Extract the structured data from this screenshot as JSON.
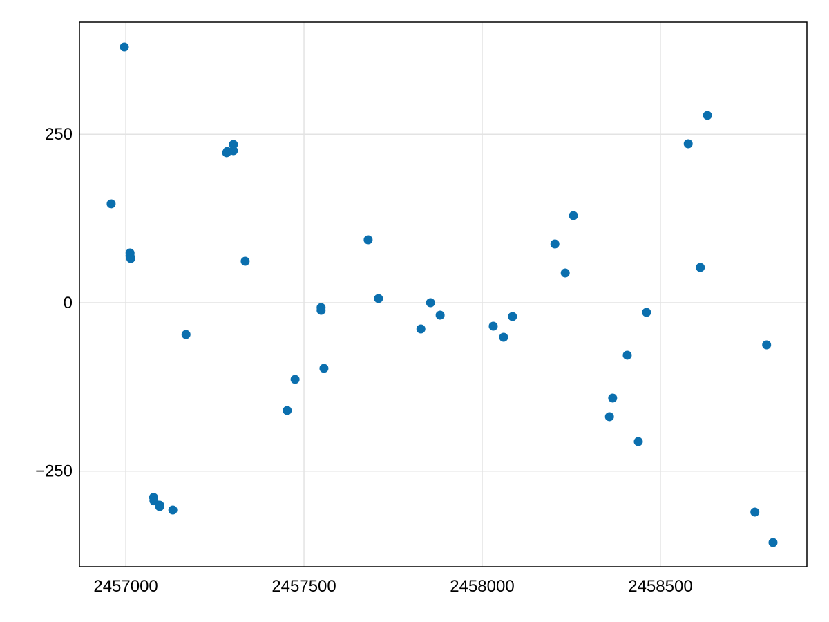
{
  "chart_data": {
    "type": "scatter",
    "color": "#0b6fae",
    "grid": true,
    "xlim": [
      2456870,
      2458911
    ],
    "ylim": [
      -391.8,
      416.4
    ],
    "xticks": [
      2457000,
      2457500,
      2458000,
      2458500
    ],
    "yticks": [
      {
        "value": -250,
        "label": "−250"
      },
      0,
      250
    ],
    "x": [
      2456959,
      2456996,
      2457012,
      2457012,
      2457014,
      2457078,
      2457079,
      2457095,
      2457095,
      2457132,
      2457169,
      2457283,
      2457285,
      2457302,
      2457302,
      2457335,
      2457453,
      2457475,
      2457548,
      2457548,
      2457556,
      2457680,
      2457709,
      2457828,
      2457855,
      2457882,
      2458031,
      2458060,
      2458085,
      2458204,
      2458233,
      2458256,
      2458357,
      2458366,
      2458407,
      2458438,
      2458461,
      2458578,
      2458612,
      2458632,
      2458765,
      2458798,
      2458816
    ],
    "values": [
      146.7,
      379.5,
      73.8,
      69.7,
      65.6,
      -289,
      -294,
      -300.5,
      -302.6,
      -307.7,
      -47.2,
      222.6,
      224.6,
      234.9,
      225.6,
      61.5,
      -160,
      -113.8,
      -7.2,
      -11.3,
      -97.4,
      93.3,
      6.2,
      -39,
      0,
      -18.5,
      -34.9,
      -51.3,
      -20.5,
      87.2,
      44.1,
      129.2,
      -169.2,
      -141.5,
      -77.9,
      -206.2,
      -14.4,
      235.9,
      52.3,
      278,
      -310.8,
      -62.6,
      -355.9
    ]
  }
}
